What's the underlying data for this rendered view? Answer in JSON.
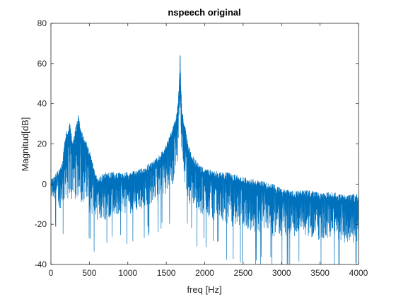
{
  "chart_data": {
    "type": "line",
    "title": "nspeech original",
    "xlabel": "freq [Hz]",
    "ylabel": "Magnitud[dB]",
    "xlim": [
      0,
      4000
    ],
    "ylim": [
      -40,
      80
    ],
    "xticks": [
      0,
      500,
      1000,
      1500,
      2000,
      2500,
      3000,
      3500,
      4000
    ],
    "yticks": [
      -40,
      -20,
      0,
      20,
      40,
      60,
      80
    ],
    "grid": false,
    "series_color": "#0072BD",
    "series": [
      {
        "x": [
          0,
          50,
          100,
          130,
          150,
          180,
          200,
          220,
          240,
          260,
          280,
          300,
          330,
          360,
          380,
          400,
          420,
          450,
          500,
          550,
          600,
          700,
          800,
          900,
          1000,
          1100,
          1200,
          1300,
          1400,
          1500,
          1550,
          1600,
          1620,
          1640,
          1660,
          1670,
          1680,
          1690,
          1700,
          1720,
          1740,
          1760,
          1800,
          1850,
          1900,
          2000,
          2100,
          2200,
          2300,
          2400,
          2500,
          2600,
          2700,
          2800,
          2900,
          3000,
          3100,
          3200,
          3300,
          3400,
          3500,
          3600,
          3700,
          3800,
          3900,
          4000
        ],
        "y": [
          3,
          5,
          7,
          10,
          12,
          22,
          28,
          26,
          32,
          28,
          20,
          25,
          30,
          35,
          28,
          27,
          24,
          22,
          17,
          10,
          3,
          6,
          6,
          6,
          6,
          7,
          8,
          11,
          14,
          20,
          25,
          30,
          33,
          37,
          45,
          55,
          64,
          50,
          40,
          34,
          30,
          25,
          18,
          14,
          11,
          8,
          7,
          6,
          6,
          5,
          4,
          3,
          2,
          1,
          0,
          -2,
          -3,
          -3,
          -3,
          -3,
          -4,
          -4,
          -4,
          -5,
          -5,
          -5
        ],
        "noise_floor": [
          -8,
          -8,
          -12,
          -12,
          -10,
          -10,
          -5,
          -8,
          -5,
          -8,
          -10,
          -10,
          -8,
          -6,
          -8,
          -10,
          -12,
          -12,
          -14,
          -16,
          -18,
          -18,
          -16,
          -15,
          -15,
          -14,
          -12,
          -10,
          -8,
          -5,
          -2,
          0,
          5,
          10,
          20,
          30,
          40,
          30,
          15,
          5,
          0,
          -5,
          -10,
          -12,
          -14,
          -16,
          -18,
          -18,
          -20,
          -22,
          -22,
          -24,
          -24,
          -25,
          -26,
          -26,
          -26,
          -27,
          -27,
          -27,
          -28,
          -28,
          -28,
          -29,
          -29,
          -29
        ]
      }
    ]
  }
}
